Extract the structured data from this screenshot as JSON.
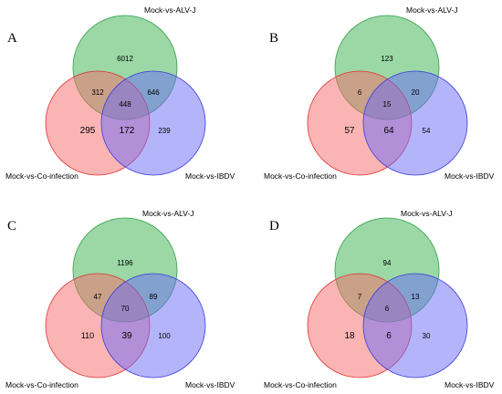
{
  "sets": [
    "Mock-vs-ALV-J",
    "Mock-vs-Co-infection",
    "Mock-vs-IBDV"
  ],
  "colors": {
    "alvj_fill": "#37b24d",
    "alvj_stroke": "#2f9e44",
    "coinf_fill": "#f76a6a",
    "coinf_stroke": "#e03131",
    "ibdv_fill": "#6a6af7",
    "ibdv_stroke": "#3b3bd9"
  },
  "panels": [
    {
      "letter": "A",
      "only_alvj": "6012",
      "alvj_coinf": "312",
      "alvj_ibdv": "646",
      "all_three": "448",
      "only_coinf": "295",
      "coinf_ibdv": "172",
      "only_ibdv": "239"
    },
    {
      "letter": "B",
      "only_alvj": "123",
      "alvj_coinf": "6",
      "alvj_ibdv": "20",
      "all_three": "15",
      "only_coinf": "57",
      "coinf_ibdv": "64",
      "only_ibdv": "54"
    },
    {
      "letter": "C",
      "only_alvj": "1196",
      "alvj_coinf": "47",
      "alvj_ibdv": "89",
      "all_three": "70",
      "only_coinf": "110",
      "coinf_ibdv": "39",
      "only_ibdv": "100"
    },
    {
      "letter": "D",
      "only_alvj": "94",
      "alvj_coinf": "7",
      "alvj_ibdv": "13",
      "all_three": "6",
      "only_coinf": "18",
      "coinf_ibdv": "6",
      "only_ibdv": "30"
    }
  ]
}
